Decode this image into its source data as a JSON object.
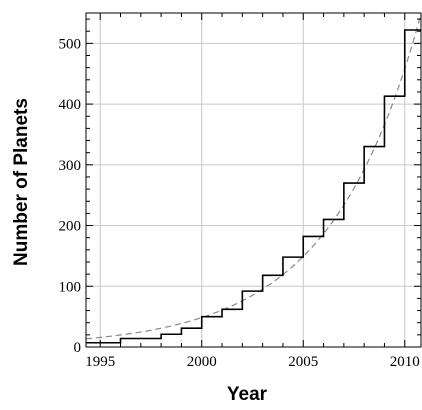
{
  "chart_data": {
    "type": "line",
    "title": "",
    "xlabel": "Year",
    "ylabel": "Number of Planets",
    "xlim": [
      1994.3,
      2010.8
    ],
    "ylim": [
      0,
      550
    ],
    "xticks": [
      1995,
      2000,
      2005,
      2010
    ],
    "yticks": [
      0,
      100,
      200,
      300,
      400,
      500
    ],
    "grid": true,
    "legend": "none",
    "series": [
      {
        "style": "step",
        "color": "#000000",
        "x": [
          1994.3,
          1996,
          1998,
          1999,
          2000,
          2001,
          2002,
          2003,
          2004,
          2005,
          2006,
          2007,
          2008,
          2009,
          2010,
          2010.8
        ],
        "y": [
          7,
          14,
          21,
          31,
          50,
          62,
          92,
          118,
          148,
          182,
          210,
          270,
          330,
          413,
          522,
          522
        ]
      },
      {
        "style": "dashed-curve",
        "color": "#888888",
        "fit": {
          "model": "exponential",
          "base_year": 1994.3,
          "base_value": 13.5,
          "growth_per_year": 0.2245
        }
      }
    ]
  }
}
